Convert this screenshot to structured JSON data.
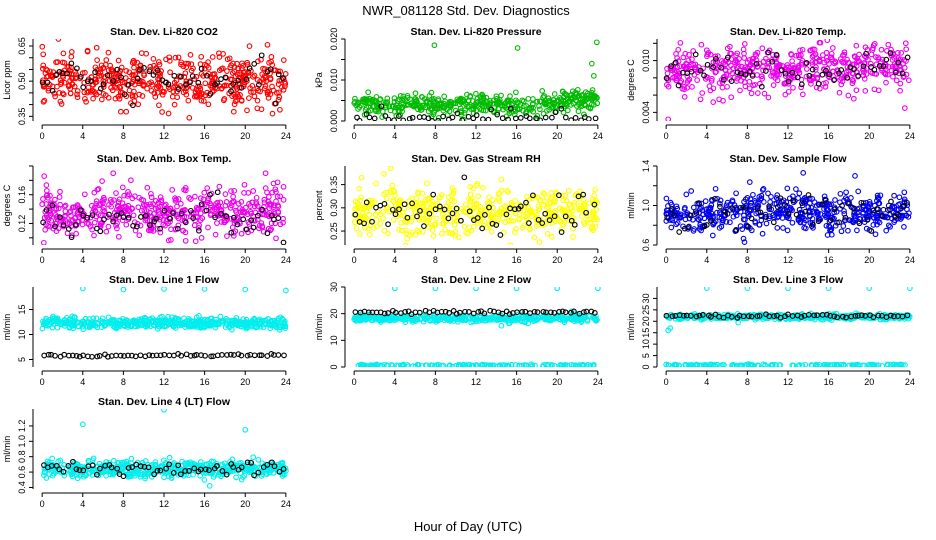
{
  "main_title": "NWR_081128  Std. Dev. Diagnostics",
  "xlabel": "Hour of Day (UTC)",
  "x_ticks": [
    0,
    4,
    8,
    12,
    16,
    20,
    24
  ],
  "chart_data": [
    {
      "id": "co2",
      "type": "scatter",
      "title": "Stan. Dev. Li-820 CO2",
      "ylabel": "Licor ppm",
      "ylim": [
        0.33,
        0.68
      ],
      "yticks": [
        0.35,
        0.4,
        0.45,
        0.5,
        0.55,
        0.6,
        0.65
      ],
      "ytick_labels": [
        "0.35",
        "",
        "",
        "0.50",
        "",
        "",
        "0.65"
      ],
      "color": "#ff0000",
      "series": [
        {
          "name": "all",
          "center": 0.5,
          "spread": 0.06,
          "n": 500
        },
        {
          "name": "black",
          "center": 0.5,
          "spread": 0.04,
          "n": 60
        }
      ],
      "outliers": [
        {
          "x": 9.8,
          "y": 0.62
        },
        {
          "x": 23.8,
          "y": 0.59
        },
        {
          "x": 1.6,
          "y": 0.68
        }
      ]
    },
    {
      "id": "press",
      "type": "scatter",
      "title": "Stan. Dev. Li-820 Pressure",
      "ylabel": "kPa",
      "ylim": [
        0,
        0.02
      ],
      "yticks": [
        0,
        0.005,
        0.01,
        0.015,
        0.02
      ],
      "ytick_labels": [
        "0.000",
        "",
        "0.010",
        "",
        "0.020"
      ],
      "color": "#00bb00",
      "series": [
        {
          "name": "all",
          "center": 0.004,
          "spread": 0.0016,
          "n": 450
        },
        {
          "name": "black",
          "center": 0.001,
          "spread": 0.0015,
          "n": 50
        }
      ],
      "outliers": [
        {
          "x": 7.9,
          "y": 0.0185
        },
        {
          "x": 16.1,
          "y": 0.0178
        },
        {
          "x": 23.9,
          "y": 0.0192
        },
        {
          "x": 23.4,
          "y": 0.014
        },
        {
          "x": 23.6,
          "y": 0.011
        }
      ]
    },
    {
      "id": "temp",
      "type": "scatter",
      "title": "Stan. Dev. Li-820 Temp.",
      "ylabel": "degrees C",
      "ylim": [
        0.003,
        0.0125
      ],
      "yticks": [
        0.004,
        0.006,
        0.008,
        0.01,
        0.012
      ],
      "ytick_labels": [
        "0.004",
        "",
        "",
        "0.010",
        ""
      ],
      "color": "#ee00ee",
      "series": [
        {
          "name": "all",
          "center": 0.009,
          "spread": 0.0015,
          "n": 500
        },
        {
          "name": "black",
          "center": 0.009,
          "spread": 0.0012,
          "n": 60
        }
      ],
      "outliers": [
        {
          "x": 0.2,
          "y": 0.0032
        },
        {
          "x": 23.5,
          "y": 0.0045
        }
      ]
    },
    {
      "id": "box",
      "type": "scatter",
      "title": "Stan. Dev. Amb. Box Temp.",
      "ylabel": "degrees C",
      "ylim": [
        0.09,
        0.2
      ],
      "yticks": [
        0.1,
        0.12,
        0.14,
        0.16,
        0.18,
        0.2
      ],
      "ytick_labels": [
        "",
        "0.12",
        "",
        "0.16",
        "",
        ""
      ],
      "color": "#ee00ee",
      "series": [
        {
          "name": "all",
          "center": 0.135,
          "spread": 0.018,
          "n": 500
        },
        {
          "name": "black",
          "center": 0.13,
          "spread": 0.015,
          "n": 60
        }
      ],
      "outliers": [
        {
          "x": 0.2,
          "y": 0.186
        },
        {
          "x": 7.0,
          "y": 0.19
        },
        {
          "x": 22.0,
          "y": 0.19
        }
      ]
    },
    {
      "id": "rh",
      "type": "scatter",
      "title": "Stan. Dev. Gas Stream RH",
      "ylabel": "percent",
      "ylim": [
        0.22,
        0.39
      ],
      "yticks": [
        0.25,
        0.3,
        0.35
      ],
      "ytick_labels": [
        "0.25",
        "0.30",
        "0.35"
      ],
      "color": "#ffff00",
      "series": [
        {
          "name": "all",
          "center": 0.29,
          "spread": 0.028,
          "n": 500
        },
        {
          "name": "black",
          "center": 0.285,
          "spread": 0.025,
          "n": 60
        }
      ],
      "outliers": [
        {
          "x": 3.6,
          "y": 0.385
        }
      ]
    },
    {
      "id": "sample",
      "type": "scatter",
      "title": "Stan. Dev. Sample Flow",
      "ylabel": "ml/min",
      "ylim": [
        0.6,
        1.4
      ],
      "yticks": [
        0.6,
        0.8,
        1.0,
        1.2,
        1.4
      ],
      "ytick_labels": [
        "0.6",
        "",
        "1.0",
        "",
        "1.4"
      ],
      "color": "#0000ee",
      "series": [
        {
          "name": "all",
          "center": 0.93,
          "spread": 0.11,
          "n": 500
        },
        {
          "name": "black",
          "center": 0.93,
          "spread": 0.1,
          "n": 60
        }
      ],
      "outliers": [
        {
          "x": 13.5,
          "y": 1.33
        },
        {
          "x": 18.6,
          "y": 1.3
        }
      ]
    },
    {
      "id": "line1",
      "type": "scatter",
      "title": "Stan. Dev. Line 1 Flow",
      "ylabel": "ml/min",
      "ylim": [
        3.5,
        19.5
      ],
      "yticks": [
        5,
        10,
        15
      ],
      "ytick_labels": [
        "5",
        "10",
        "15"
      ],
      "color": "#00eeee",
      "series": [
        {
          "name": "all",
          "center": 12.3,
          "spread": 0.55,
          "n": 500
        },
        {
          "name": "black",
          "center": 5.8,
          "spread": 0.15,
          "n": 60
        }
      ],
      "outliers": [
        {
          "x": 4.0,
          "y": 19.2
        },
        {
          "x": 8.0,
          "y": 19.0
        },
        {
          "x": 12.0,
          "y": 19.1
        },
        {
          "x": 16.0,
          "y": 19.1
        },
        {
          "x": 20.0,
          "y": 19.0
        },
        {
          "x": 24.0,
          "y": 18.8
        }
      ]
    },
    {
      "id": "line2",
      "type": "scatter",
      "title": "Stan. Dev. Line 2 Flow",
      "ylabel": "ml/min",
      "ylim": [
        0,
        30
      ],
      "yticks": [
        0,
        10,
        20,
        30
      ],
      "ytick_labels": [
        "0",
        "10",
        "20",
        "30"
      ],
      "color": "#00eeee",
      "series": [
        {
          "name": "all",
          "center": 18.2,
          "spread": 0.7,
          "n": 450
        },
        {
          "name": "black",
          "center": 20.5,
          "spread": 0.35,
          "n": 60
        },
        {
          "name": "low",
          "center": 0.6,
          "spread": 0.2,
          "n": 150
        }
      ],
      "outliers": [
        {
          "x": 4.0,
          "y": 29.5
        },
        {
          "x": 8.0,
          "y": 29.5
        },
        {
          "x": 12.0,
          "y": 29.5
        },
        {
          "x": 16.0,
          "y": 29.5
        },
        {
          "x": 20.0,
          "y": 29.5
        },
        {
          "x": 24.0,
          "y": 29.5
        },
        {
          "x": 14.5,
          "y": 15.5
        }
      ]
    },
    {
      "id": "line3",
      "type": "scatter",
      "title": "Stan. Dev. Line 3 Flow",
      "ylabel": "ml/min",
      "ylim": [
        0,
        35
      ],
      "yticks": [
        0,
        5,
        10,
        15,
        20,
        25,
        30
      ],
      "ytick_labels": [
        "0",
        "5",
        "10",
        "15",
        "20",
        "25",
        "30"
      ],
      "color": "#00eeee",
      "series": [
        {
          "name": "all",
          "center": 22.0,
          "spread": 0.6,
          "n": 450
        },
        {
          "name": "black",
          "center": 22.3,
          "spread": 0.4,
          "n": 60
        },
        {
          "name": "low",
          "center": 0.8,
          "spread": 0.2,
          "n": 150
        }
      ],
      "outliers": [
        {
          "x": 4.0,
          "y": 34.5
        },
        {
          "x": 8.0,
          "y": 34.5
        },
        {
          "x": 12.0,
          "y": 34.5
        },
        {
          "x": 16.0,
          "y": 34.5
        },
        {
          "x": 20.0,
          "y": 34.5
        },
        {
          "x": 24.0,
          "y": 34.5
        },
        {
          "x": 0.2,
          "y": 16.0
        },
        {
          "x": 0.4,
          "y": 17.0
        }
      ]
    },
    {
      "id": "line4",
      "type": "scatter",
      "title": "Stan. Dev. Line 4 (LT) Flow",
      "ylabel": "ml/min",
      "ylim": [
        0.38,
        1.42
      ],
      "yticks": [
        0.4,
        0.6,
        0.8,
        1.0,
        1.2
      ],
      "ytick_labels": [
        "0.4",
        "0.6",
        "0.8",
        "1.0",
        "1.2"
      ],
      "color": "#00eeee",
      "series": [
        {
          "name": "all",
          "center": 0.64,
          "spread": 0.06,
          "n": 500
        },
        {
          "name": "black",
          "center": 0.65,
          "spread": 0.06,
          "n": 60
        }
      ],
      "outliers": [
        {
          "x": 12.0,
          "y": 1.41
        },
        {
          "x": 4.0,
          "y": 1.22
        },
        {
          "x": 20.0,
          "y": 1.15
        },
        {
          "x": 16.5,
          "y": 0.42
        }
      ]
    }
  ]
}
